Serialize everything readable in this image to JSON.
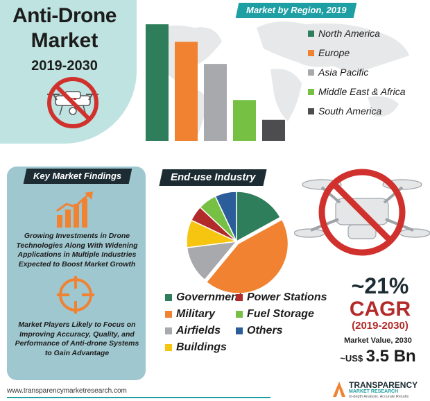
{
  "header": {
    "title_line1": "Anti-Drone",
    "title_line2": "Market",
    "years": "2019-2030"
  },
  "colors": {
    "north_america": "#2e7d5b",
    "europe": "#f08232",
    "asia_pacific": "#a7a9ac",
    "mea": "#76c043",
    "south_america": "#4d4d4f",
    "government": "#2e7d5b",
    "power_stations": "#b22a2a",
    "military": "#f08232",
    "fuel_storage": "#76c043",
    "airfields": "#a7a9ac",
    "others": "#2a5d9a",
    "buildings": "#f6c510",
    "teal": "#1e9fa3",
    "dark": "#1d2c33"
  },
  "chart_data": [
    {
      "type": "bar",
      "title": "Market by Region, 2019",
      "categories": [
        "North America",
        "Europe",
        "Asia Pacific",
        "Middle East & Africa",
        "South America"
      ],
      "values": [
        100,
        85,
        66,
        35,
        18
      ],
      "ylim": [
        0,
        100
      ],
      "xlabel": "",
      "ylabel": "",
      "legend": "right",
      "grid": false
    },
    {
      "type": "pie",
      "title": "End-use Industry",
      "categories": [
        "Government",
        "Military",
        "Airfields",
        "Buildings",
        "Power Stations",
        "Fuel Storage",
        "Others"
      ],
      "values": [
        17,
        44,
        12,
        9,
        5,
        6,
        7
      ],
      "legend": "bottom"
    }
  ],
  "findings": {
    "title": "Key Market Findings",
    "item1": "Growing Investments in Drone Technologies Along With Widening Applications in Multiple Industries Expected to Boost Market Growth",
    "item2": "Market Players Likely to Focus on Improving Accuracy, Quality, and Performance of Anti-drone Systems to Gain Advantage",
    "icon1": "growth-chart-icon",
    "icon2": "target-crosshair-icon"
  },
  "cagr": {
    "percent": "~21%",
    "label": "CAGR",
    "years": "(2019-2030)",
    "market_value_label": "Market Value, 2030",
    "currency": "~US$",
    "value": "3.5 Bn"
  },
  "footer": {
    "url": "www.transparencymarketresearch.com",
    "logo_line1": "TRANSPARENCY",
    "logo_line2": "MARKET RESEARCH",
    "logo_line3": "In-depth Analysis. Accurate Results"
  }
}
